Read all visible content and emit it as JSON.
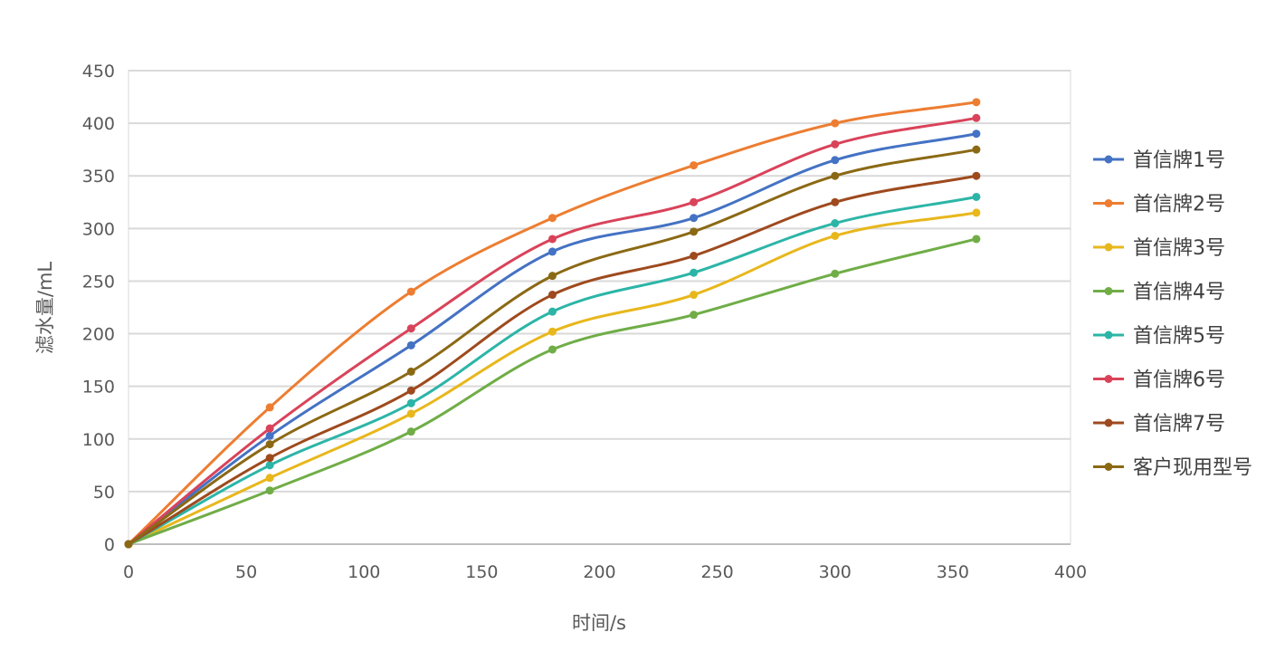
{
  "chart_data": {
    "type": "line",
    "title": "",
    "xlabel": "时间/s",
    "ylabel": "滤水量/mL",
    "xlim": [
      0,
      400
    ],
    "ylim": [
      0,
      450
    ],
    "x_ticks": [
      0,
      50,
      100,
      150,
      200,
      250,
      300,
      350,
      400
    ],
    "y_ticks": [
      0,
      50,
      100,
      150,
      200,
      250,
      300,
      350,
      400,
      450
    ],
    "grid": true,
    "legend_position": "right",
    "x": [
      0,
      60,
      120,
      180,
      240,
      300,
      360
    ],
    "series": [
      {
        "name": "首信牌1号",
        "color": "#4472C4",
        "values": [
          0,
          103,
          189,
          278,
          310,
          365,
          390
        ]
      },
      {
        "name": "首信牌2号",
        "color": "#ED7D31",
        "values": [
          0,
          130,
          240,
          310,
          360,
          400,
          420
        ]
      },
      {
        "name": "首信牌3号",
        "color": "#E8B71C",
        "values": [
          0,
          63,
          124,
          202,
          237,
          293,
          315
        ]
      },
      {
        "name": "首信牌4号",
        "color": "#70AD47",
        "values": [
          0,
          51,
          107,
          185,
          218,
          257,
          290
        ]
      },
      {
        "name": "首信牌5号",
        "color": "#2CB5A7",
        "values": [
          0,
          75,
          134,
          221,
          258,
          305,
          330
        ]
      },
      {
        "name": "首信牌6号",
        "color": "#D9435A",
        "values": [
          0,
          110,
          205,
          290,
          325,
          380,
          405
        ]
      },
      {
        "name": "首信牌7号",
        "color": "#9E4A1E",
        "values": [
          0,
          82,
          146,
          237,
          274,
          325,
          350
        ]
      },
      {
        "name": "客户现用型号",
        "color": "#8B6914",
        "values": [
          0,
          95,
          164,
          255,
          297,
          350,
          375
        ]
      }
    ]
  }
}
